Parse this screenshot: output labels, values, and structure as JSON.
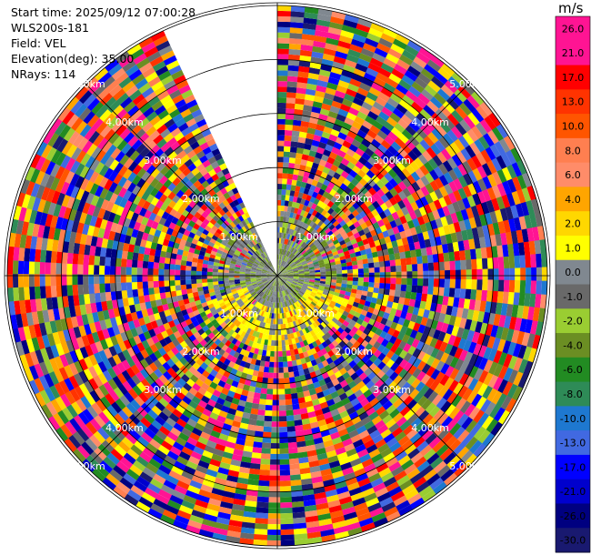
{
  "header": {
    "start_time": "Start time: 2025/09/12 07:00:28",
    "instrument": "WLS200s-181",
    "field": "Field: VEL",
    "elevation": "Elevation(deg): 35.00",
    "nrays": "NRays: 114"
  },
  "chart_data": {
    "type": "heatmap",
    "projection": "polar-ppi",
    "range_ring_labels_km": [
      "1.00km",
      "2.00km",
      "3.00km",
      "4.00km",
      "5.00km"
    ],
    "range_rings_km": [
      1,
      2,
      3,
      4,
      5
    ],
    "max_range_km": 5.05,
    "data_gap_azimuth_deg": [
      335,
      360
    ],
    "colorbar": {
      "unit": "m/s",
      "tick_labels": [
        "26.0",
        "21.0",
        "17.0",
        "13.0",
        "10.0",
        "8.0",
        "6.0",
        "4.0",
        "2.0",
        "1.0",
        "0.0",
        "-1.0",
        "-2.0",
        "-4.0",
        "-6.0",
        "-8.0",
        "-10.0",
        "-13.0",
        "-17.0",
        "-21.0",
        "-26.0",
        "-30.0"
      ],
      "colors": [
        "#ff1493",
        "#ff1493",
        "#ff0000",
        "#ff3300",
        "#ff5500",
        "#ff7f50",
        "#ff8c69",
        "#ffa500",
        "#ffd700",
        "#ffff00",
        "#808890",
        "#696969",
        "#9acd32",
        "#6b8e23",
        "#228b22",
        "#2e8b57",
        "#1e78d0",
        "#4169e1",
        "#0000ff",
        "#0000cd",
        "#000080",
        "#191970"
      ]
    }
  }
}
